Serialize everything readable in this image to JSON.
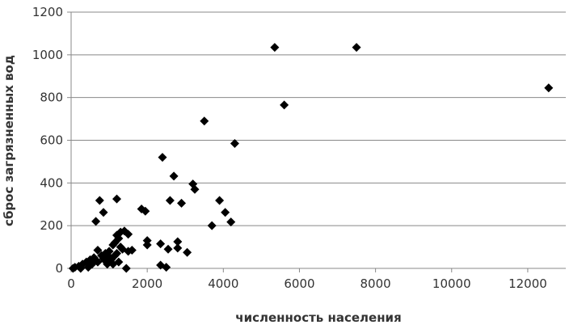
{
  "chart_data": {
    "type": "scatter",
    "title": "",
    "xlabel": "численность населения",
    "ylabel": "сброс загрязненных вод",
    "xlim": [
      0,
      13000
    ],
    "ylim": [
      0,
      1200
    ],
    "xticks": [
      "0",
      "2000",
      "4000",
      "6000",
      "8000",
      "10000",
      "12000"
    ],
    "yticks": [
      "0",
      "200",
      "400",
      "600",
      "800",
      "1000",
      "1200"
    ],
    "grid": "horizontal",
    "legend": "none",
    "marker_color": "#000000",
    "marker": "diamond",
    "points": [
      [
        5350,
        1035
      ],
      [
        7500,
        1035
      ],
      [
        12550,
        845
      ],
      [
        5600,
        765
      ],
      [
        3500,
        690
      ],
      [
        4300,
        585
      ],
      [
        2400,
        520
      ],
      [
        2700,
        432
      ],
      [
        3200,
        395
      ],
      [
        3250,
        370
      ],
      [
        3900,
        318
      ],
      [
        4050,
        262
      ],
      [
        4200,
        217
      ],
      [
        3700,
        200
      ],
      [
        2600,
        318
      ],
      [
        2900,
        305
      ],
      [
        1850,
        278
      ],
      [
        1950,
        268
      ],
      [
        1200,
        325
      ],
      [
        750,
        318
      ],
      [
        850,
        262
      ],
      [
        650,
        220
      ],
      [
        2000,
        130
      ],
      [
        2000,
        110
      ],
      [
        2350,
        115
      ],
      [
        2800,
        125
      ],
      [
        2800,
        95
      ],
      [
        2550,
        90
      ],
      [
        3050,
        75
      ],
      [
        2350,
        15
      ],
      [
        2500,
        5
      ],
      [
        1400,
        175
      ],
      [
        1300,
        170
      ],
      [
        1500,
        160
      ],
      [
        1200,
        155
      ],
      [
        1100,
        110
      ],
      [
        1500,
        80
      ],
      [
        1600,
        85
      ],
      [
        1300,
        100
      ],
      [
        1000,
        80
      ],
      [
        900,
        70
      ],
      [
        800,
        60
      ],
      [
        700,
        85
      ],
      [
        600,
        50
      ],
      [
        500,
        40
      ],
      [
        400,
        30
      ],
      [
        300,
        20
      ],
      [
        200,
        10
      ],
      [
        100,
        5
      ],
      [
        50,
        0
      ],
      [
        250,
        0
      ],
      [
        450,
        5
      ],
      [
        550,
        20
      ],
      [
        1050,
        40
      ],
      [
        1150,
        60
      ],
      [
        1250,
        30
      ],
      [
        1450,
        0
      ],
      [
        950,
        20
      ],
      [
        700,
        30
      ],
      [
        1350,
        90
      ],
      [
        1100,
        20
      ],
      [
        850,
        45
      ],
      [
        1200,
        70
      ],
      [
        1000,
        55
      ],
      [
        1150,
        120
      ],
      [
        1250,
        140
      ],
      [
        900,
        35
      ]
    ]
  }
}
